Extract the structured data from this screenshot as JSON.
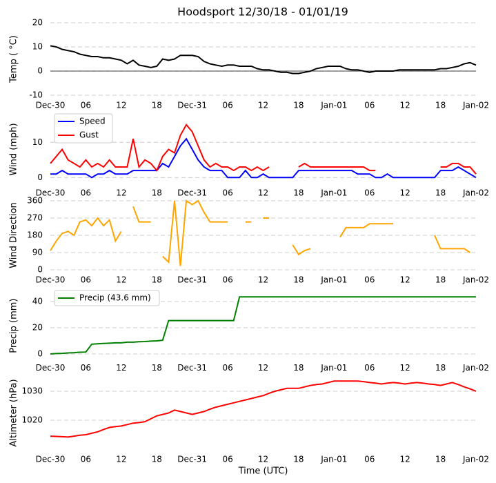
{
  "chart_data": [
    {
      "type": "line",
      "title": "Hoodsport 12/30/18 - 01/01/19",
      "ylabel": "Temp ( °C)",
      "x": [
        0,
        1,
        2,
        3,
        4,
        5,
        6,
        7,
        8,
        9,
        10,
        11,
        12,
        13,
        14,
        15,
        16,
        17,
        18,
        19,
        20,
        21,
        22,
        23,
        24,
        25,
        26,
        27,
        28,
        29,
        30,
        31,
        32,
        33,
        34,
        35,
        36,
        37,
        38,
        39,
        40,
        41,
        42,
        43,
        44,
        45,
        46,
        47,
        48,
        49,
        50,
        51,
        52,
        53,
        54,
        55,
        56,
        57,
        58,
        59,
        60,
        61,
        62,
        63,
        64,
        65,
        66,
        67,
        68,
        69,
        70,
        71,
        72
      ],
      "xlim": [
        0,
        72
      ],
      "xticks": [
        {
          "value": 0,
          "label": "Dec-30"
        },
        {
          "value": 6,
          "label": "06"
        },
        {
          "value": 12,
          "label": "12"
        },
        {
          "value": 18,
          "label": "18"
        },
        {
          "value": 24,
          "label": "Dec-31"
        },
        {
          "value": 30,
          "label": "06"
        },
        {
          "value": 36,
          "label": "12"
        },
        {
          "value": 42,
          "label": "18"
        },
        {
          "value": 48,
          "label": "Jan-01"
        },
        {
          "value": 54,
          "label": "06"
        },
        {
          "value": 60,
          "label": "12"
        },
        {
          "value": 66,
          "label": "18"
        },
        {
          "value": 72,
          "label": "Jan-02"
        }
      ],
      "ylim": [
        -10,
        20
      ],
      "yticks": [
        -10,
        0,
        10,
        20
      ],
      "grid": true,
      "axhline": 0,
      "series": [
        {
          "name": "Temp",
          "color": "#000000",
          "values": [
            10.5,
            10,
            9,
            8.5,
            8,
            7,
            6.5,
            6,
            6,
            5.5,
            5.5,
            5,
            4.5,
            3,
            4.5,
            2.5,
            2,
            1.5,
            2,
            5,
            4.5,
            5,
            6.5,
            6.5,
            6.5,
            6,
            4,
            3,
            2.5,
            2,
            2.5,
            2.5,
            2,
            2,
            2,
            1,
            0.5,
            0.5,
            0,
            -0.5,
            -0.5,
            -1,
            -1,
            -0.5,
            0,
            1,
            1.5,
            2,
            2,
            2,
            1,
            0.5,
            0.5,
            0,
            -0.5,
            0,
            0,
            0,
            0,
            0.5,
            0.5,
            0.5,
            0.5,
            0.5,
            0.5,
            0.5,
            1,
            1,
            1.5,
            2,
            3,
            3.5,
            2.5
          ]
        }
      ]
    },
    {
      "type": "line",
      "ylabel": "Wind (mph)",
      "x": [
        0,
        1,
        2,
        3,
        4,
        5,
        6,
        7,
        8,
        9,
        10,
        11,
        12,
        13,
        14,
        15,
        16,
        17,
        18,
        19,
        20,
        21,
        22,
        23,
        24,
        25,
        26,
        27,
        28,
        29,
        30,
        31,
        32,
        33,
        34,
        35,
        36,
        37,
        38,
        39,
        40,
        41,
        42,
        43,
        44,
        45,
        46,
        47,
        48,
        49,
        50,
        51,
        52,
        53,
        54,
        55,
        56,
        57,
        58,
        59,
        60,
        61,
        62,
        63,
        64,
        65,
        66,
        67,
        68,
        69,
        70,
        71,
        72
      ],
      "xlim": [
        0,
        72
      ],
      "xticks": [
        {
          "value": 0,
          "label": "Dec-30"
        },
        {
          "value": 6,
          "label": "06"
        },
        {
          "value": 12,
          "label": "12"
        },
        {
          "value": 18,
          "label": "18"
        },
        {
          "value": 24,
          "label": "Dec-31"
        },
        {
          "value": 30,
          "label": "06"
        },
        {
          "value": 36,
          "label": "12"
        },
        {
          "value": 42,
          "label": "18"
        },
        {
          "value": 48,
          "label": "Jan-01"
        },
        {
          "value": 54,
          "label": "06"
        },
        {
          "value": 60,
          "label": "12"
        },
        {
          "value": 66,
          "label": "18"
        },
        {
          "value": 72,
          "label": "Jan-02"
        }
      ],
      "ylim": [
        -1.5,
        17.5
      ],
      "yticks": [
        0,
        10
      ],
      "grid": true,
      "legend": "upper left",
      "series": [
        {
          "name": "Speed",
          "color": "#0000ff",
          "values": [
            1,
            1,
            2,
            1,
            1,
            1,
            1,
            0,
            1,
            1,
            2,
            1,
            1,
            1,
            2,
            2,
            2,
            2,
            2,
            4,
            3,
            6,
            9,
            11,
            8,
            5,
            3,
            2,
            2,
            2,
            0,
            0,
            0,
            2,
            0,
            0,
            1,
            0,
            0,
            0,
            0,
            0,
            2,
            2,
            2,
            2,
            2,
            2,
            2,
            2,
            2,
            2,
            1,
            1,
            1,
            0,
            0,
            1,
            0,
            0,
            0,
            0,
            0,
            0,
            0,
            0,
            2,
            2,
            2,
            3,
            2,
            1,
            0
          ]
        },
        {
          "name": "Gust",
          "color": "#ff0000",
          "values": [
            4,
            6,
            8,
            5,
            4,
            3,
            5,
            3,
            4,
            3,
            5,
            3,
            3,
            3,
            11,
            3,
            5,
            4,
            2,
            6,
            8,
            7,
            12,
            15,
            13,
            9,
            5,
            3,
            4,
            3,
            3,
            2,
            3,
            3,
            2,
            3,
            2,
            3,
            null,
            2,
            null,
            null,
            3,
            4,
            3,
            3,
            3,
            3,
            3,
            3,
            3,
            3,
            3,
            3,
            2,
            2,
            null,
            2,
            null,
            null,
            null,
            null,
            null,
            null,
            null,
            null,
            3,
            3,
            4,
            4,
            3,
            3,
            1
          ]
        }
      ]
    },
    {
      "type": "line",
      "ylabel": "Wind Direction",
      "x": [
        0,
        1,
        2,
        3,
        4,
        5,
        6,
        7,
        8,
        9,
        10,
        11,
        12,
        13,
        14,
        15,
        16,
        17,
        18,
        19,
        20,
        21,
        22,
        23,
        24,
        25,
        26,
        27,
        28,
        29,
        30,
        31,
        32,
        33,
        34,
        35,
        36,
        37,
        38,
        39,
        40,
        41,
        42,
        43,
        44,
        45,
        46,
        47,
        48,
        49,
        50,
        51,
        52,
        53,
        54,
        55,
        56,
        57,
        58,
        59,
        60,
        61,
        62,
        63,
        64,
        65,
        66,
        67,
        68,
        69,
        70,
        71,
        72
      ],
      "xlim": [
        0,
        72
      ],
      "xticks": [
        {
          "value": 0,
          "label": "Dec-30"
        },
        {
          "value": 6,
          "label": "06"
        },
        {
          "value": 12,
          "label": "12"
        },
        {
          "value": 18,
          "label": "18"
        },
        {
          "value": 24,
          "label": "Dec-31"
        },
        {
          "value": 30,
          "label": "06"
        },
        {
          "value": 36,
          "label": "12"
        },
        {
          "value": 42,
          "label": "18"
        },
        {
          "value": 48,
          "label": "Jan-01"
        },
        {
          "value": 54,
          "label": "06"
        },
        {
          "value": 60,
          "label": "12"
        },
        {
          "value": 66,
          "label": "18"
        },
        {
          "value": 72,
          "label": "Jan-02"
        }
      ],
      "ylim": [
        0,
        360
      ],
      "yticks": [
        0,
        90,
        180,
        270,
        360
      ],
      "grid": true,
      "series": [
        {
          "name": "Direction",
          "color": "#ffa500",
          "values": [
            100,
            150,
            190,
            200,
            180,
            250,
            260,
            230,
            270,
            230,
            260,
            150,
            200,
            null,
            330,
            250,
            250,
            250,
            null,
            70,
            40,
            360,
            20,
            360,
            340,
            360,
            300,
            250,
            250,
            250,
            250,
            null,
            null,
            250,
            250,
            null,
            270,
            270,
            null,
            null,
            null,
            130,
            80,
            100,
            110,
            null,
            null,
            null,
            null,
            170,
            220,
            220,
            220,
            220,
            240,
            240,
            240,
            240,
            240,
            null,
            null,
            null,
            null,
            null,
            null,
            180,
            110,
            110,
            110,
            110,
            110,
            90,
            null
          ]
        }
      ]
    },
    {
      "type": "line",
      "ylabel": "Precip (mm)",
      "x": [
        0,
        1,
        2,
        3,
        4,
        5,
        6,
        7,
        8,
        9,
        10,
        11,
        12,
        13,
        14,
        15,
        16,
        17,
        18,
        19,
        20,
        21,
        22,
        23,
        24,
        25,
        26,
        27,
        28,
        29,
        30,
        31,
        32,
        33,
        34,
        35,
        36,
        37,
        38,
        39,
        40,
        41,
        42,
        43,
        44,
        45,
        46,
        47,
        48,
        49,
        50,
        51,
        52,
        53,
        54,
        55,
        56,
        57,
        58,
        59,
        60,
        61,
        62,
        63,
        64,
        65,
        66,
        67,
        68,
        69,
        70,
        71,
        72
      ],
      "xlim": [
        0,
        72
      ],
      "xticks": [
        {
          "value": 0,
          "label": "Dec-30"
        },
        {
          "value": 6,
          "label": "06"
        },
        {
          "value": 12,
          "label": "12"
        },
        {
          "value": 18,
          "label": "18"
        },
        {
          "value": 24,
          "label": "Dec-31"
        },
        {
          "value": 30,
          "label": "06"
        },
        {
          "value": 36,
          "label": "12"
        },
        {
          "value": 42,
          "label": "18"
        },
        {
          "value": 48,
          "label": "Jan-01"
        },
        {
          "value": 54,
          "label": "06"
        },
        {
          "value": 60,
          "label": "12"
        },
        {
          "value": 66,
          "label": "18"
        },
        {
          "value": 72,
          "label": "Jan-02"
        }
      ],
      "ylim": [
        -3,
        46
      ],
      "yticks": [
        0,
        20,
        40
      ],
      "grid": true,
      "legend": "upper left",
      "series": [
        {
          "name": "Precip (43.6 mm)",
          "color": "#008000",
          "values": [
            0,
            0.3,
            0.5,
            0.8,
            1,
            1.3,
            1.5,
            7.5,
            7.8,
            8,
            8.2,
            8.5,
            8.5,
            9,
            9,
            9.3,
            9.5,
            9.8,
            10,
            10.5,
            25.5,
            25.5,
            25.5,
            25.5,
            25.5,
            25.5,
            25.5,
            25.5,
            25.5,
            25.5,
            25.5,
            25.5,
            43.6,
            43.6,
            43.6,
            43.6,
            43.6,
            43.6,
            43.6,
            43.6,
            43.6,
            43.6,
            43.6,
            43.6,
            43.6,
            43.6,
            43.6,
            43.6,
            43.6,
            43.6,
            43.6,
            43.6,
            43.6,
            43.6,
            43.6,
            43.6,
            43.6,
            43.6,
            43.6,
            43.6,
            43.6,
            43.6,
            43.6,
            43.6,
            43.6,
            43.6,
            43.6,
            43.6,
            43.6,
            43.6,
            43.6,
            43.6,
            43.6
          ]
        }
      ]
    },
    {
      "type": "line",
      "ylabel": "Altimeter (hPa)",
      "xlabel": "Time (UTC)",
      "x": [
        0,
        1,
        2,
        3,
        4,
        5,
        6,
        7,
        8,
        9,
        10,
        11,
        12,
        13,
        14,
        15,
        16,
        17,
        18,
        19,
        20,
        21,
        22,
        23,
        24,
        25,
        26,
        27,
        28,
        29,
        30,
        31,
        32,
        33,
        34,
        35,
        36,
        37,
        38,
        39,
        40,
        41,
        42,
        43,
        44,
        45,
        46,
        47,
        48,
        49,
        50,
        51,
        52,
        53,
        54,
        55,
        56,
        57,
        58,
        59,
        60,
        61,
        62,
        63,
        64,
        65,
        66,
        67,
        68,
        69,
        70,
        71,
        72
      ],
      "xlim": [
        0,
        72
      ],
      "xticks": [
        {
          "value": 0,
          "label": "Dec-30"
        },
        {
          "value": 6,
          "label": "06"
        },
        {
          "value": 12,
          "label": "12"
        },
        {
          "value": 18,
          "label": "18"
        },
        {
          "value": 24,
          "label": "Dec-31"
        },
        {
          "value": 30,
          "label": "06"
        },
        {
          "value": 36,
          "label": "12"
        },
        {
          "value": 42,
          "label": "18"
        },
        {
          "value": 48,
          "label": "Jan-01"
        },
        {
          "value": 54,
          "label": "06"
        },
        {
          "value": 60,
          "label": "12"
        },
        {
          "value": 66,
          "label": "18"
        },
        {
          "value": 72,
          "label": "Jan-02"
        }
      ],
      "ylim": [
        1010,
        1035
      ],
      "yticks": [
        1020,
        1030
      ],
      "grid": true,
      "series": [
        {
          "name": "Altimeter",
          "color": "#ff0000",
          "values": [
            1014.5,
            1014.4,
            1014.3,
            1014.2,
            1014.5,
            1014.8,
            1015,
            1015.5,
            1016,
            1016.8,
            1017.5,
            1017.8,
            1018,
            1018.5,
            1019,
            1019.2,
            1019.5,
            1020.5,
            1021.5,
            1022,
            1022.5,
            1023.5,
            1023,
            1022.5,
            1022,
            1022.5,
            1023,
            1023.8,
            1024.5,
            1025,
            1025.5,
            1026,
            1026.5,
            1027,
            1027.5,
            1028,
            1028.5,
            1029.3,
            1030,
            1030.5,
            1031,
            1031,
            1031,
            1031.5,
            1032,
            1032.3,
            1032.5,
            1033,
            1033.5,
            1033.5,
            1033.5,
            1033.5,
            1033.5,
            1033.3,
            1033,
            1032.8,
            1032.5,
            1032.8,
            1033,
            1032.8,
            1032.5,
            1032.8,
            1033,
            1032.8,
            1032.5,
            1032.3,
            1032,
            1032.5,
            1033,
            1032.3,
            1031.5,
            1030.8,
            1030
          ]
        }
      ]
    }
  ]
}
